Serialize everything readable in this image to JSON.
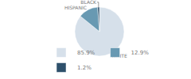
{
  "chart_data": {
    "type": "pie",
    "categories": [
      "WHITE",
      "HISPANIC",
      "BLACK"
    ],
    "values": [
      85.9,
      12.9,
      1.2
    ],
    "value_labels": [
      "85.9%",
      "12.9%",
      "1.2%"
    ],
    "colors": [
      "#d6e0ea",
      "#6899b2",
      "#2e506b"
    ],
    "legend": "bottom"
  }
}
